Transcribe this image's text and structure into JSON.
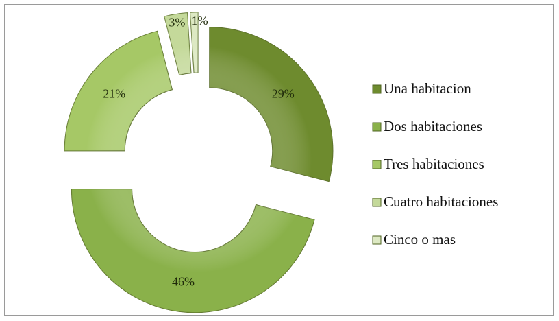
{
  "chart_data": {
    "type": "pie",
    "variant": "exploded-doughnut",
    "legend_position": "right",
    "categories": [
      "Una habitacion",
      "Dos habitaciones",
      "Tres habitaciones",
      "Cuatro habitaciones",
      "Cinco o mas"
    ],
    "values": [
      29,
      46,
      21,
      3,
      1
    ],
    "labels": [
      "29%",
      "46%",
      "21%",
      "3%",
      "1%"
    ],
    "colors": [
      "#6e8b2e",
      "#8ab14a",
      "#a6c866",
      "#c4d99a",
      "#dde9c3"
    ]
  }
}
